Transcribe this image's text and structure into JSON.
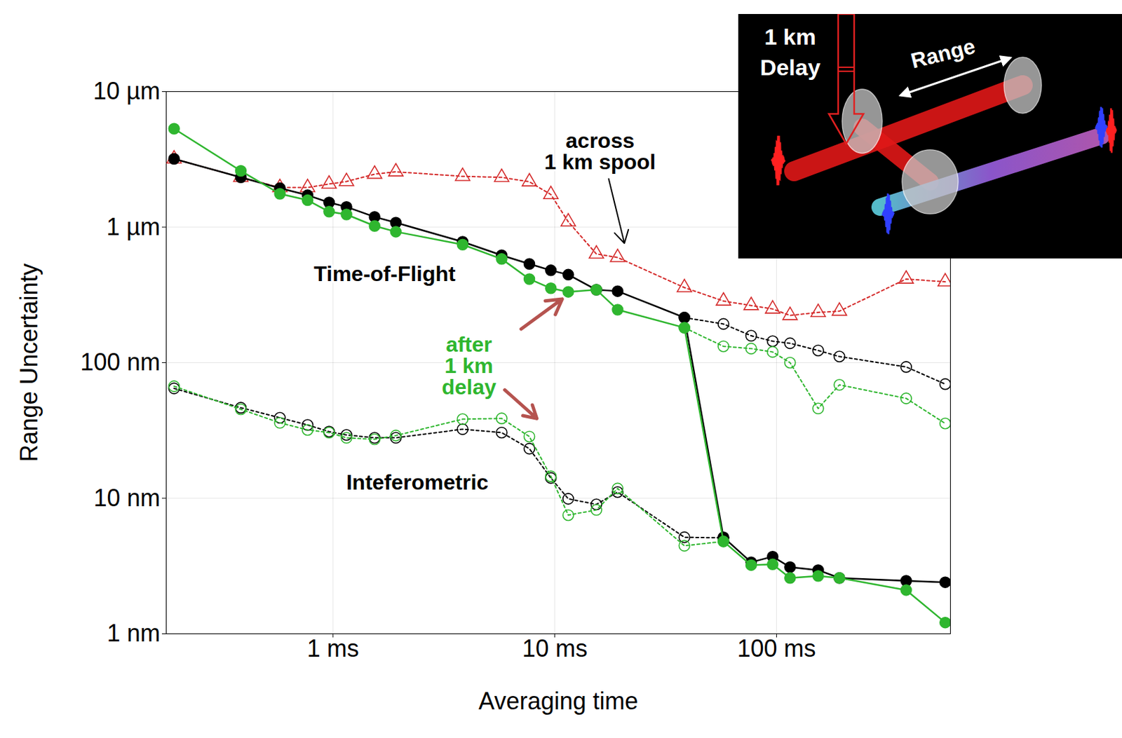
{
  "chart_data": {
    "type": "line",
    "xlabel": "Averaging time",
    "ylabel": "Range Uncertainty",
    "log": true,
    "grid": true,
    "xlim": [
      0.177,
      608
    ],
    "ylim": [
      1,
      10000
    ],
    "xticks": [
      {
        "value": 1,
        "label": "1 ms"
      },
      {
        "value": 10,
        "label": "10 ms"
      },
      {
        "value": 100,
        "label": "100 ms"
      }
    ],
    "yticks": [
      {
        "value": 1,
        "label": "1 nm"
      },
      {
        "value": 10,
        "label": "10 nm"
      },
      {
        "value": 100,
        "label": "100 nm"
      },
      {
        "value": 1000,
        "label": "1 µm"
      },
      {
        "value": 10000,
        "label": "10 µm"
      }
    ],
    "x": [
      0.192,
      0.384,
      0.576,
      0.768,
      0.96,
      1.15,
      1.54,
      1.92,
      3.84,
      5.76,
      7.68,
      9.6,
      11.5,
      15.4,
      19.2,
      38.4,
      57.6,
      76.8,
      96,
      115,
      154,
      192,
      384,
      576
    ],
    "series": [
      {
        "color": "#d42a2a",
        "marker": "open_triangle",
        "line_style": "dotted",
        "values": [
          3190,
          2330,
          1960,
          1960,
          2080,
          2170,
          2460,
          2560,
          2370,
          2330,
          2160,
          1740,
          1095,
          634,
          597,
          358,
          285,
          264,
          249,
          223,
          235,
          240,
          414,
          395
        ]
      },
      {
        "color": "#000000",
        "marker": "open_circle",
        "line_style": "dotted",
        "values": [
          null,
          null,
          null,
          null,
          null,
          null,
          null,
          null,
          null,
          null,
          null,
          null,
          null,
          null,
          null,
          215,
          193,
          158,
          144,
          139,
          123,
          111,
          93,
          69.5
        ]
      },
      {
        "color": "#2fb62f",
        "marker": "open_circle",
        "line_style": "dotted",
        "values": [
          null,
          null,
          null,
          null,
          null,
          null,
          null,
          null,
          null,
          null,
          null,
          null,
          null,
          null,
          null,
          181,
          132,
          127,
          120,
          100,
          45.9,
          68.6,
          54.5,
          35.6
        ]
      },
      {
        "color": "#000000",
        "marker": "open_circle",
        "line_style": "dotted",
        "values": [
          64.6,
          46.5,
          39.2,
          34.7,
          31.0,
          29.3,
          27.9,
          27.9,
          32.3,
          30.5,
          23.2,
          14.1,
          9.9,
          9.0,
          11.1,
          5.15,
          5.1,
          null,
          null,
          null,
          null,
          null,
          null,
          null
        ]
      },
      {
        "color": "#2fb62f",
        "marker": "open_circle",
        "line_style": "dotted",
        "values": [
          67,
          45.3,
          36.0,
          31.9,
          30.5,
          27.9,
          27.2,
          29.0,
          38.3,
          38.8,
          28.5,
          14.5,
          7.5,
          8.2,
          11.8,
          4.46,
          4.8,
          null,
          null,
          null,
          null,
          null,
          null,
          null
        ]
      },
      {
        "color": "#000000",
        "marker": "filled_circle",
        "line_style": "solid",
        "values": [
          3190,
          2330,
          1940,
          1720,
          1520,
          1410,
          1190,
          1080,
          780,
          620,
          535,
          480,
          446,
          345,
          337,
          215,
          5.15,
          3.37,
          3.71,
          3.1,
          2.95,
          2.58,
          2.46,
          2.4
        ]
      },
      {
        "color": "#2fb62f",
        "marker": "filled_circle",
        "line_style": "solid",
        "values": [
          5320,
          2600,
          1760,
          1580,
          1300,
          1240,
          1020,
          925,
          743,
          582,
          414,
          354,
          333,
          345,
          246,
          181,
          4.8,
          3.21,
          3.25,
          2.58,
          2.67,
          2.58,
          2.1,
          1.21
        ]
      }
    ],
    "annotations": [
      {
        "text": "across 1 km spool",
        "color": "#000000"
      },
      {
        "text": "Time-of-Flight",
        "color": "#000000"
      },
      {
        "text": "after 1 km delay",
        "color": "#2fb62f"
      },
      {
        "text": "Inteferometric",
        "color": "#000000"
      }
    ],
    "inset_labels": [
      "1 km Delay",
      "Range"
    ]
  }
}
